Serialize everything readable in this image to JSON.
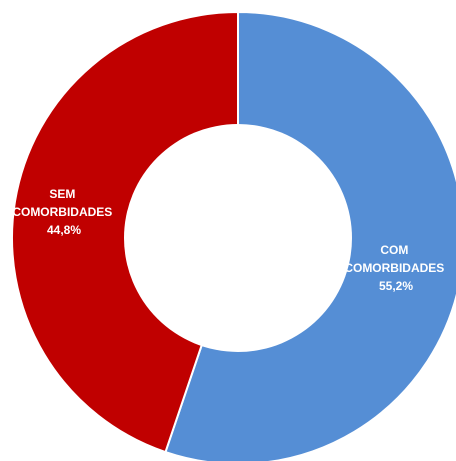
{
  "chart_data": {
    "type": "pie",
    "donut": true,
    "legend": "none",
    "slices": [
      {
        "name": "COM COMORBIDADES",
        "label_lines": [
          "COM",
          "COMORBIDADES"
        ],
        "value": 55.2,
        "value_label": "55,2%",
        "color": "#558ed5"
      },
      {
        "name": "SEM COMORBIDADES",
        "label_lines": [
          "SEM",
          "COMORBIDADES"
        ],
        "value": 44.8,
        "value_label": "44,8%",
        "color": "#c00000"
      }
    ]
  }
}
